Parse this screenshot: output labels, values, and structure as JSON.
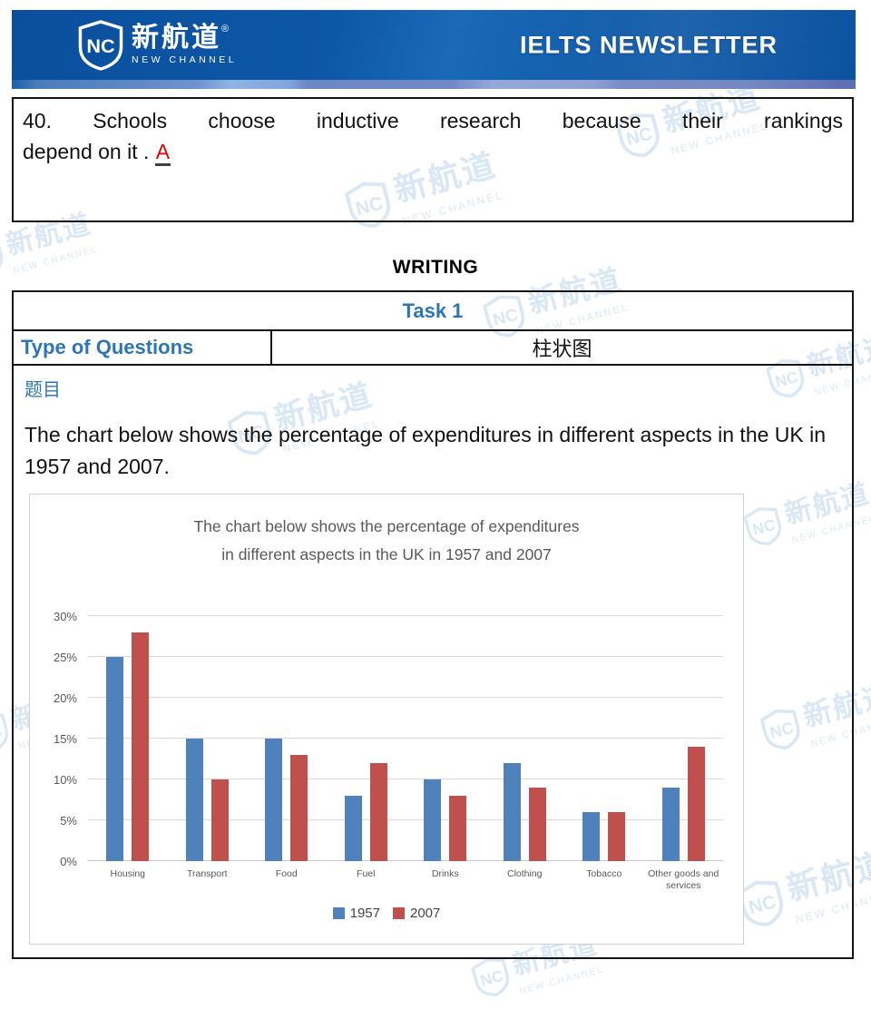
{
  "header": {
    "logo_nc": "NC",
    "logo_cn": "新航道",
    "logo_reg": "®",
    "logo_en": "NEW CHANNEL",
    "title": "IELTS NEWSLETTER"
  },
  "watermark": {
    "cn": "新航道",
    "en": "NEW CHANNEL",
    "nc": "NC"
  },
  "question_box": {
    "line1": "40. Schools choose inductive research because their rankings",
    "line2_prefix": "depend on it . ",
    "answer": "A"
  },
  "writing_heading": "WRITING",
  "task_table": {
    "task_title": "Task 1",
    "type_label": "Type of Questions",
    "type_value": "柱状图",
    "topic_label": "题目",
    "prompt": "The chart below shows the percentage of expenditures in different aspects in the UK in 1957 and 2007."
  },
  "chart_data": {
    "type": "bar",
    "title": "The chart below shows the percentage of expenditures in different aspects in the UK in 1957 and 2007",
    "title_lines": [
      "The chart below shows the percentage of expenditures",
      "in different aspects in the UK in 1957 and 2007"
    ],
    "categories": [
      "Housing",
      "Transport",
      "Food",
      "Fuel",
      "Drinks",
      "Clothing",
      "Tobacco",
      "Other goods and services"
    ],
    "series": [
      {
        "name": "1957",
        "color": "#4f81bd",
        "values": [
          25,
          15,
          15,
          8,
          10,
          12,
          6,
          9
        ]
      },
      {
        "name": "2007",
        "color": "#c0504d",
        "values": [
          28,
          10,
          13,
          12,
          8,
          9,
          6,
          14
        ]
      }
    ],
    "xlabel": "",
    "ylabel": "",
    "ylim": [
      0,
      30
    ],
    "ytick_step": 5,
    "ytick_format": "percent",
    "grid": true,
    "legend_position": "bottom"
  },
  "colors": {
    "banner_blue": "#0d57a6",
    "accent_blue": "#2e75b6",
    "answer_red": "#e30000",
    "bar_blue": "#4f81bd",
    "bar_red": "#c0504d",
    "chart_text_gray": "#595959"
  }
}
